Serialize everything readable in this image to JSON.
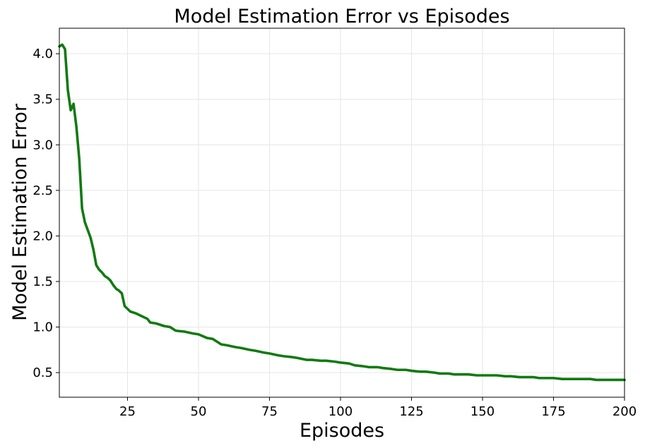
{
  "chart_data": {
    "type": "line",
    "title": "Model Estimation Error vs Episodes",
    "xlabel": "Episodes",
    "ylabel": "Model Estimation Error",
    "xlim": [
      1,
      200
    ],
    "ylim": [
      0.23,
      4.28
    ],
    "xticks": [
      25,
      50,
      75,
      100,
      125,
      150,
      175,
      200
    ],
    "yticks": [
      0.5,
      1.0,
      1.5,
      2.0,
      2.5,
      3.0,
      3.5,
      4.0
    ],
    "grid": true,
    "series": [
      {
        "color": "#117a11",
        "x": [
          1,
          2,
          3,
          4,
          5,
          6,
          7,
          8,
          9,
          10,
          12,
          13,
          14,
          15,
          16,
          17,
          18,
          19,
          20,
          21,
          22,
          23,
          24,
          25,
          26,
          28,
          30,
          32,
          33,
          35,
          38,
          40,
          42,
          45,
          48,
          50,
          53,
          55,
          58,
          60,
          63,
          65,
          68,
          70,
          73,
          75,
          78,
          80,
          83,
          85,
          88,
          90,
          93,
          95,
          98,
          100,
          103,
          105,
          108,
          110,
          113,
          115,
          118,
          120,
          123,
          125,
          128,
          130,
          133,
          135,
          138,
          140,
          143,
          145,
          148,
          150,
          153,
          155,
          158,
          160,
          163,
          165,
          168,
          170,
          173,
          175,
          178,
          180,
          183,
          185,
          188,
          190,
          193,
          195,
          198,
          200
        ],
        "values": [
          4.08,
          4.1,
          4.05,
          3.6,
          3.38,
          3.45,
          3.2,
          2.85,
          2.3,
          2.15,
          1.98,
          1.85,
          1.68,
          1.63,
          1.6,
          1.56,
          1.54,
          1.51,
          1.46,
          1.42,
          1.4,
          1.37,
          1.23,
          1.2,
          1.17,
          1.15,
          1.12,
          1.09,
          1.05,
          1.04,
          1.01,
          1.0,
          0.96,
          0.95,
          0.93,
          0.92,
          0.88,
          0.87,
          0.81,
          0.8,
          0.78,
          0.77,
          0.75,
          0.74,
          0.72,
          0.71,
          0.69,
          0.68,
          0.67,
          0.66,
          0.64,
          0.64,
          0.63,
          0.63,
          0.62,
          0.61,
          0.6,
          0.58,
          0.57,
          0.56,
          0.56,
          0.55,
          0.54,
          0.53,
          0.53,
          0.52,
          0.51,
          0.51,
          0.5,
          0.49,
          0.49,
          0.48,
          0.48,
          0.48,
          0.47,
          0.47,
          0.47,
          0.47,
          0.46,
          0.46,
          0.45,
          0.45,
          0.45,
          0.44,
          0.44,
          0.44,
          0.43,
          0.43,
          0.43,
          0.43,
          0.43,
          0.42,
          0.42,
          0.42,
          0.42,
          0.42
        ]
      }
    ]
  }
}
